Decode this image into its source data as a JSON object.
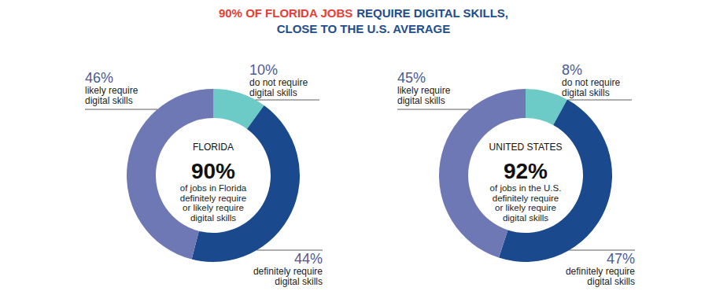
{
  "title": [
    "90% OF FLORIDA JOBS",
    "REQUIRE DIGITAL SKILLS,",
    "CLOSE TO THE U.S. AVERAGE"
  ],
  "chart_data": [
    {
      "type": "donut",
      "title": "FLORIDA",
      "categories": [
        "do not require digital skills",
        "definitely require digital skills",
        "likely require digital skills"
      ],
      "values": [
        10,
        44,
        46
      ],
      "value_labels": [
        "10%",
        "44%",
        "46%"
      ],
      "colors": [
        "#6dcbc7",
        "#1a4a8d",
        "#6e78b4"
      ],
      "data_labels": true,
      "center_value": 90,
      "center_value_label": "90%",
      "center_text": "of jobs in Florida definitely require or likely require digital skills"
    },
    {
      "type": "donut",
      "title": "UNITED STATES",
      "categories": [
        "do not require digital skills",
        "definitely require digital skills",
        "likely require digital skills"
      ],
      "values": [
        8,
        47,
        45
      ],
      "value_labels": [
        "8%",
        "47%",
        "45%"
      ],
      "colors": [
        "#6dcbc7",
        "#1a4a8d",
        "#6e78b4"
      ],
      "data_labels": true,
      "center_value": 92,
      "center_value_label": "92%",
      "center_text": "of jobs in the U.S. definitely require or likely require digital skills"
    }
  ]
}
